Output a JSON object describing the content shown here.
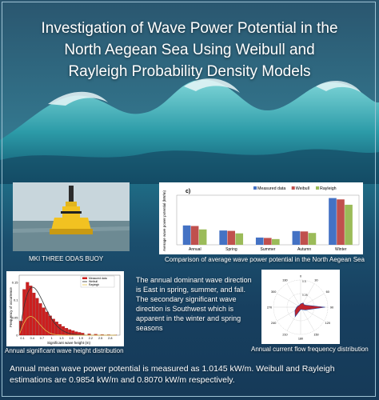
{
  "poster": {
    "title_line1": "Investigation of Wave Power Potential in the",
    "title_line2": "North Aegean Sea Using Weibull and",
    "title_line3": "Rayleigh Probability Density Models",
    "colors": {
      "background": "#1b4f6e",
      "wave": "#2f8fa0",
      "text": "#ffffff"
    }
  },
  "buoy": {
    "caption": "MKI THREE ODAS BUOY"
  },
  "bar_chart": {
    "caption": "Comparison of average wave power potential  in the North Aegean Sea",
    "panel_label": "c)",
    "chart_data": {
      "type": "bar",
      "categories": [
        "Annual",
        "Spring",
        "Summer",
        "Autumn",
        "Winter"
      ],
      "series": [
        {
          "name": "Measured data",
          "values": [
            1.0145,
            0.75,
            0.38,
            0.72,
            2.45
          ],
          "color": "#4472c4"
        },
        {
          "name": "Weibull",
          "values": [
            0.9854,
            0.73,
            0.36,
            0.7,
            2.38
          ],
          "color": "#c0504d"
        },
        {
          "name": "Rayleigh",
          "values": [
            0.807,
            0.6,
            0.3,
            0.62,
            2.1
          ],
          "color": "#9bbb59"
        }
      ],
      "ylabel": "Average wave power potential (kW/m)",
      "ylim": [
        0,
        2.6
      ],
      "legend": "top-right"
    }
  },
  "histogram": {
    "caption": "Annual significant wave height distribution",
    "chart_data": {
      "type": "bar",
      "x": [
        0.1,
        0.2,
        0.3,
        0.4,
        0.5,
        0.6,
        0.7,
        0.8,
        0.9,
        1.0,
        1.1,
        1.2,
        1.3,
        1.4,
        1.5,
        1.6,
        1.7,
        1.8,
        1.9,
        2.0,
        2.2,
        2.4,
        2.6,
        2.8,
        3.0
      ],
      "values": [
        0.04,
        0.13,
        0.15,
        0.14,
        0.12,
        0.105,
        0.09,
        0.078,
        0.066,
        0.055,
        0.046,
        0.038,
        0.031,
        0.025,
        0.02,
        0.016,
        0.013,
        0.01,
        0.008,
        0.006,
        0.004,
        0.003,
        0.002,
        0.0015,
        0.001
      ],
      "series": [
        {
          "name": "Measured data",
          "color": "#cc1f1f"
        },
        {
          "name": "Weibull",
          "color": "#333333"
        },
        {
          "name": "Rayleigh",
          "color": "#e5c04a"
        }
      ],
      "xlabel": "Significant wave height (m)",
      "ylabel": "Frequency of occurrence",
      "ytick_labels": [
        "0",
        "0.05",
        "0.1",
        "0.15"
      ],
      "xtick_labels": [
        "0.1",
        "0.4",
        "0.7",
        "1",
        "1.3",
        "1.6",
        "1.9",
        "2.2",
        "2.5",
        "2.8"
      ],
      "xlim": [
        0,
        3.1
      ],
      "ylim": [
        0,
        0.17
      ]
    }
  },
  "rose": {
    "caption": "Annual current flow frequency distribution",
    "chart_data": {
      "type": "polar-area",
      "angle_labels": [
        "0",
        "30",
        "60",
        "90",
        "120",
        "150",
        "180",
        "210",
        "240",
        "270",
        "300",
        "330"
      ],
      "radius_labels": [
        "0.25",
        "0.5"
      ],
      "directions": [
        0,
        30,
        60,
        90,
        120,
        150,
        180,
        210,
        240,
        270,
        300,
        330
      ],
      "values": [
        0.06,
        0.09,
        0.08,
        0.45,
        0.1,
        0.05,
        0.04,
        0.2,
        0.12,
        0.07,
        0.05,
        0.04
      ],
      "fill_color": "#c0232b"
    }
  },
  "middle_text": "The annual dominant wave direction is East in spring, summer, and fall. The secondary significant wave direction is Southwest which is apparent in the winter and spring seasons",
  "bottom_text": "Annual mean wave power potential is measured as  1.0145 kW/m. Weibull  and Rayleigh estimations are  0.9854 kW/m and 0.8070 kW/m respectively."
}
